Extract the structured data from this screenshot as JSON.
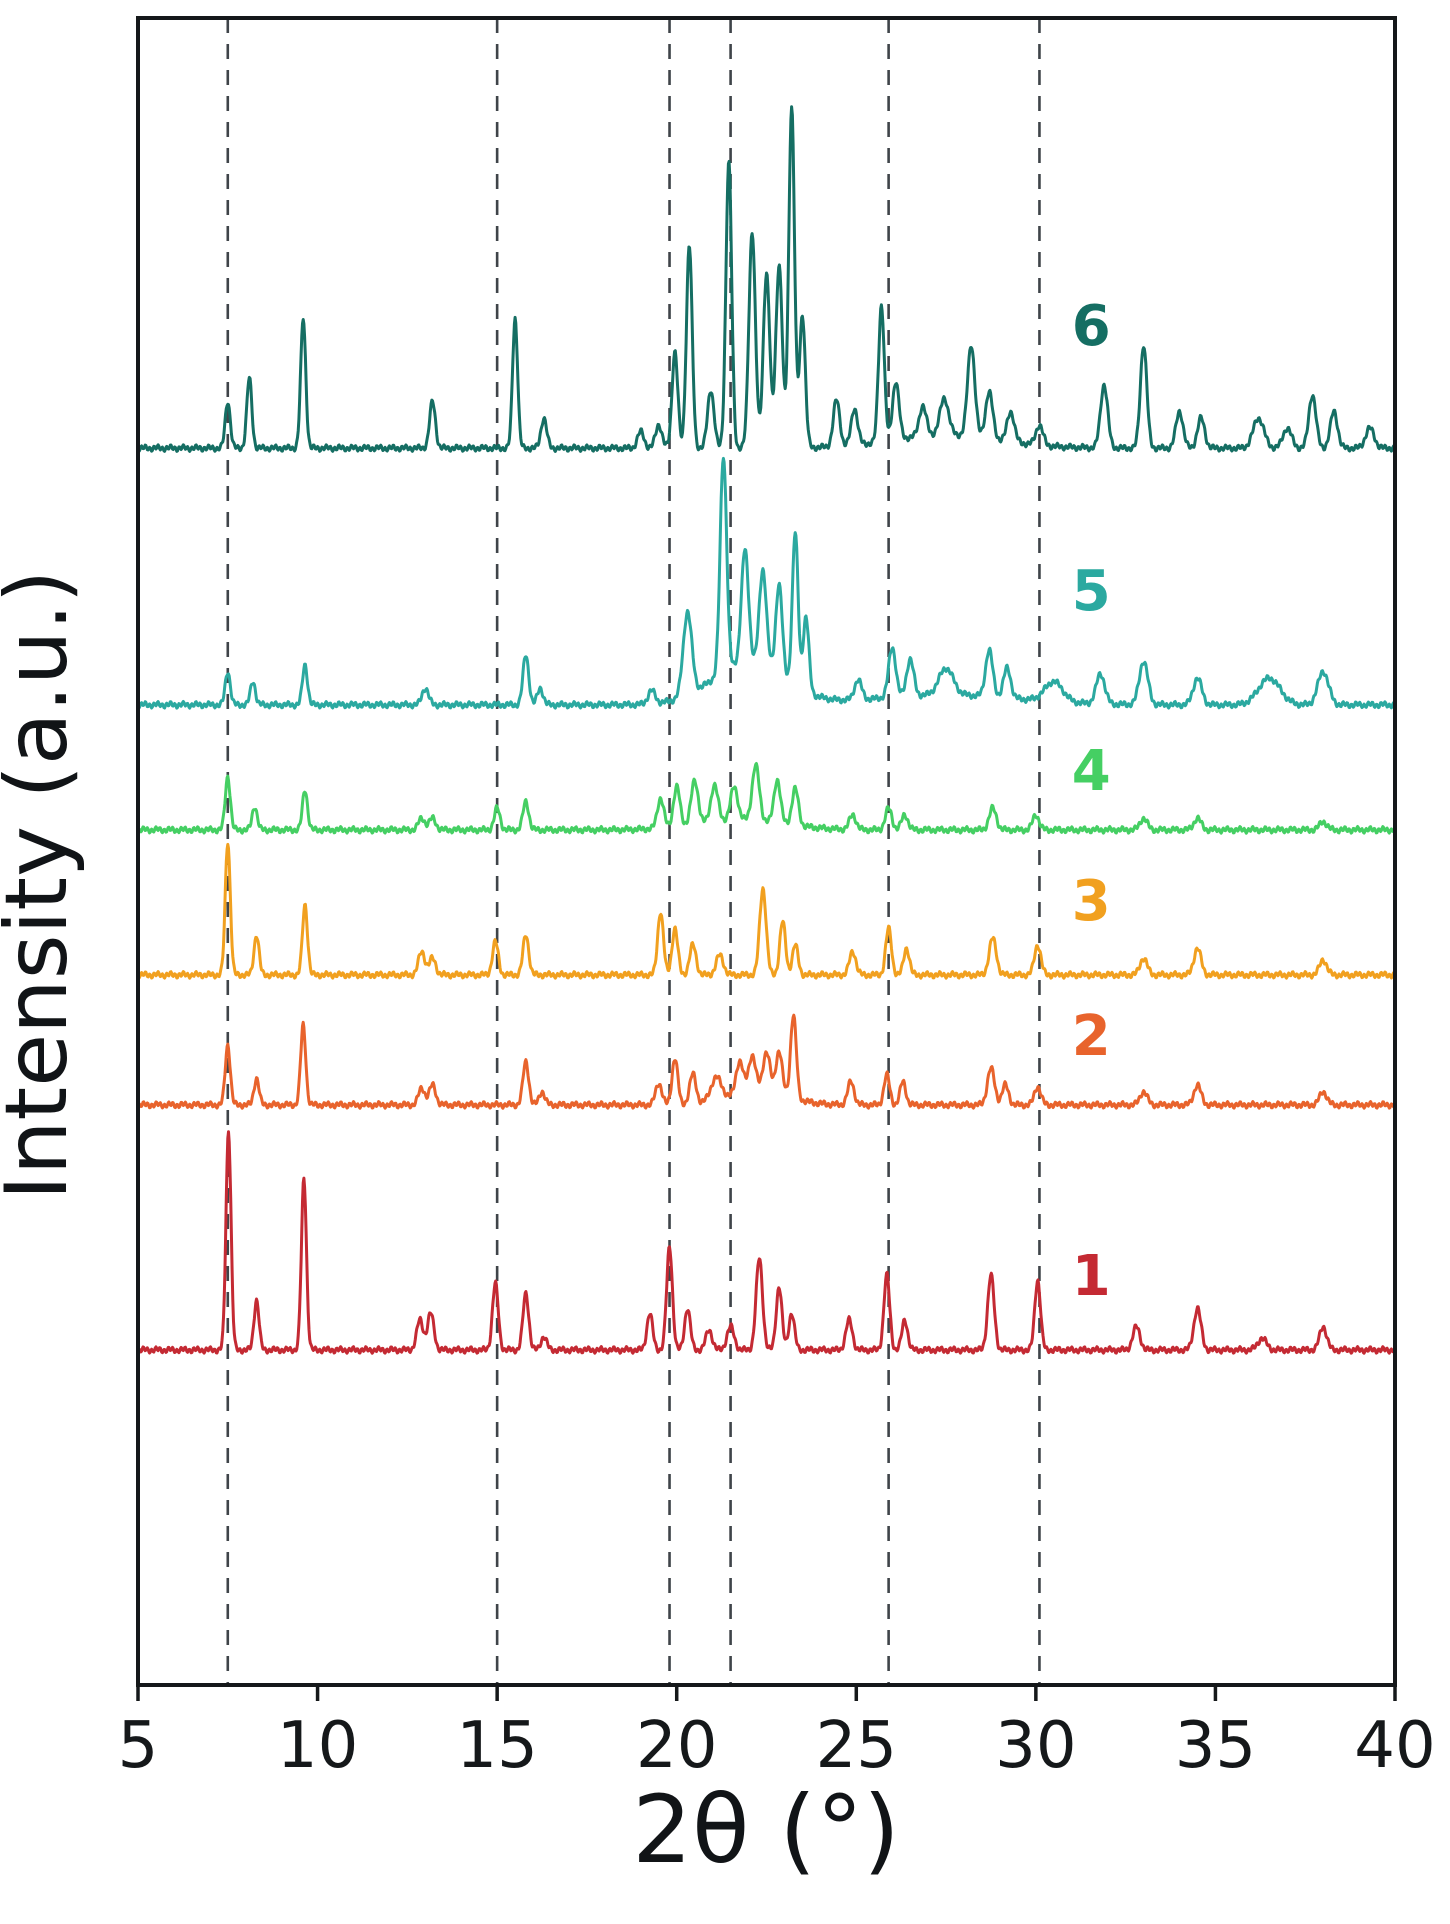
{
  "figure": {
    "background": "#ffffff",
    "frame_color": "#15181a"
  },
  "chart_data": {
    "type": "line",
    "title": "",
    "subtitle": "",
    "xlabel": "2θ (°)",
    "ylabel": "Intensity (a.u.)",
    "xlim": [
      5,
      40
    ],
    "x_ticks": [
      5,
      10,
      15,
      20,
      25,
      30,
      35,
      40
    ],
    "y_axis": "arbitrary units, no ticks (stacked offset XRD patterns)",
    "grid": "off",
    "legend": "inline numeric labels at right side of each trace",
    "dashed_guides_x": [
      7.5,
      15.0,
      19.8,
      21.5,
      25.9,
      30.1
    ],
    "dashed_guide_color": "#3f4449",
    "peaks_format": "[two_theta_deg, amplitude_fraction_of_plot_height, sigma_deg]",
    "series": [
      {
        "name": "pattern-1",
        "label": "1",
        "color": "#c42a33",
        "offset": 0.201,
        "label_x": 31.0,
        "label_y": 0.243,
        "peaks": [
          [
            7.52,
            0.132,
            0.07
          ],
          [
            8.3,
            0.03,
            0.07
          ],
          [
            9.62,
            0.103,
            0.07
          ],
          [
            12.85,
            0.018,
            0.09
          ],
          [
            13.15,
            0.022,
            0.09
          ],
          [
            14.95,
            0.04,
            0.08
          ],
          [
            15.8,
            0.034,
            0.08
          ],
          [
            16.3,
            0.008,
            0.08
          ],
          [
            19.25,
            0.022,
            0.08
          ],
          [
            19.8,
            0.062,
            0.08
          ],
          [
            20.3,
            0.025,
            0.08
          ],
          [
            20.9,
            0.012,
            0.09
          ],
          [
            21.5,
            0.014,
            0.1
          ],
          [
            22.3,
            0.055,
            0.09
          ],
          [
            22.85,
            0.038,
            0.08
          ],
          [
            23.2,
            0.022,
            0.08
          ],
          [
            24.8,
            0.018,
            0.09
          ],
          [
            25.85,
            0.045,
            0.08
          ],
          [
            26.35,
            0.018,
            0.08
          ],
          [
            28.75,
            0.045,
            0.09
          ],
          [
            30.05,
            0.042,
            0.08
          ],
          [
            32.8,
            0.014,
            0.1
          ],
          [
            34.5,
            0.025,
            0.1
          ],
          [
            36.3,
            0.007,
            0.12
          ],
          [
            38.0,
            0.014,
            0.1
          ]
        ]
      },
      {
        "name": "pattern-2",
        "label": "2",
        "color": "#e8632c",
        "offset": 0.348,
        "label_x": 31.0,
        "label_y": 0.387,
        "peaks": [
          [
            7.5,
            0.036,
            0.07
          ],
          [
            8.3,
            0.016,
            0.07
          ],
          [
            9.6,
            0.048,
            0.07
          ],
          [
            12.9,
            0.01,
            0.09
          ],
          [
            13.2,
            0.012,
            0.09
          ],
          [
            15.8,
            0.026,
            0.08
          ],
          [
            16.25,
            0.008,
            0.08
          ],
          [
            19.5,
            0.013,
            0.09
          ],
          [
            19.95,
            0.028,
            0.08
          ],
          [
            20.45,
            0.018,
            0.09
          ],
          [
            21.1,
            0.014,
            0.15
          ],
          [
            21.75,
            0.02,
            0.1
          ],
          [
            22.1,
            0.022,
            0.1
          ],
          [
            22.5,
            0.024,
            0.1
          ],
          [
            22.85,
            0.026,
            0.09
          ],
          [
            23.25,
            0.05,
            0.08
          ],
          [
            24.85,
            0.014,
            0.09
          ],
          [
            25.85,
            0.018,
            0.08
          ],
          [
            26.3,
            0.014,
            0.08
          ],
          [
            28.75,
            0.022,
            0.1
          ],
          [
            29.15,
            0.012,
            0.09
          ],
          [
            30.05,
            0.011,
            0.09
          ],
          [
            33.0,
            0.008,
            0.1
          ],
          [
            34.5,
            0.012,
            0.1
          ],
          [
            38.0,
            0.008,
            0.1
          ],
          [
            22.3,
            0.008,
            0.8
          ]
        ]
      },
      {
        "name": "pattern-3",
        "label": "3",
        "color": "#f1a01f",
        "offset": 0.426,
        "label_x": 31.0,
        "label_y": 0.468,
        "peaks": [
          [
            7.5,
            0.08,
            0.07
          ],
          [
            8.3,
            0.024,
            0.07
          ],
          [
            9.65,
            0.042,
            0.07
          ],
          [
            12.9,
            0.014,
            0.09
          ],
          [
            13.2,
            0.01,
            0.09
          ],
          [
            14.95,
            0.02,
            0.08
          ],
          [
            15.8,
            0.024,
            0.08
          ],
          [
            19.55,
            0.038,
            0.08
          ],
          [
            19.95,
            0.028,
            0.08
          ],
          [
            20.45,
            0.018,
            0.09
          ],
          [
            21.2,
            0.012,
            0.1
          ],
          [
            22.4,
            0.052,
            0.09
          ],
          [
            22.95,
            0.032,
            0.08
          ],
          [
            23.3,
            0.018,
            0.08
          ],
          [
            24.9,
            0.014,
            0.09
          ],
          [
            25.9,
            0.028,
            0.08
          ],
          [
            26.4,
            0.016,
            0.08
          ],
          [
            28.8,
            0.022,
            0.1
          ],
          [
            30.05,
            0.018,
            0.09
          ],
          [
            33.0,
            0.01,
            0.1
          ],
          [
            34.5,
            0.016,
            0.1
          ],
          [
            38.0,
            0.009,
            0.1
          ]
        ]
      },
      {
        "name": "pattern-4",
        "label": "4",
        "color": "#45cf63",
        "offset": 0.513,
        "label_x": 31.0,
        "label_y": 0.546,
        "peaks": [
          [
            7.5,
            0.032,
            0.07
          ],
          [
            8.25,
            0.014,
            0.07
          ],
          [
            9.65,
            0.024,
            0.07
          ],
          [
            12.9,
            0.007,
            0.09
          ],
          [
            13.2,
            0.007,
            0.09
          ],
          [
            15.0,
            0.013,
            0.08
          ],
          [
            15.8,
            0.017,
            0.08
          ],
          [
            19.55,
            0.018,
            0.09
          ],
          [
            20.0,
            0.024,
            0.09
          ],
          [
            20.5,
            0.026,
            0.1
          ],
          [
            21.05,
            0.022,
            0.1
          ],
          [
            21.6,
            0.02,
            0.1
          ],
          [
            22.2,
            0.033,
            0.1
          ],
          [
            22.8,
            0.026,
            0.09
          ],
          [
            23.3,
            0.022,
            0.09
          ],
          [
            24.9,
            0.009,
            0.09
          ],
          [
            25.9,
            0.013,
            0.09
          ],
          [
            26.35,
            0.009,
            0.09
          ],
          [
            28.8,
            0.013,
            0.1
          ],
          [
            30.0,
            0.009,
            0.09
          ],
          [
            33.0,
            0.007,
            0.1
          ],
          [
            34.5,
            0.007,
            0.1
          ],
          [
            38.0,
            0.005,
            0.1
          ],
          [
            21.8,
            0.006,
            1.2
          ]
        ]
      },
      {
        "name": "pattern-5",
        "label": "5",
        "color": "#2ba9a0",
        "offset": 0.588,
        "label_x": 31.0,
        "label_y": 0.654,
        "peaks": [
          [
            7.5,
            0.02,
            0.07
          ],
          [
            8.2,
            0.014,
            0.07
          ],
          [
            9.65,
            0.024,
            0.07
          ],
          [
            13.0,
            0.01,
            0.09
          ],
          [
            15.8,
            0.03,
            0.08
          ],
          [
            16.2,
            0.01,
            0.08
          ],
          [
            19.3,
            0.008,
            0.1
          ],
          [
            20.3,
            0.05,
            0.12
          ],
          [
            21.3,
            0.13,
            0.09
          ],
          [
            21.9,
            0.068,
            0.1
          ],
          [
            22.4,
            0.058,
            0.1
          ],
          [
            22.85,
            0.055,
            0.09
          ],
          [
            23.3,
            0.092,
            0.08
          ],
          [
            23.6,
            0.045,
            0.08
          ],
          [
            25.05,
            0.012,
            0.1
          ],
          [
            26.0,
            0.03,
            0.1
          ],
          [
            26.5,
            0.022,
            0.1
          ],
          [
            27.5,
            0.016,
            0.2
          ],
          [
            28.7,
            0.028,
            0.1
          ],
          [
            29.2,
            0.018,
            0.1
          ],
          [
            30.5,
            0.012,
            0.25
          ],
          [
            31.8,
            0.018,
            0.12
          ],
          [
            33.0,
            0.026,
            0.12
          ],
          [
            34.5,
            0.016,
            0.12
          ],
          [
            36.5,
            0.016,
            0.3
          ],
          [
            38.0,
            0.02,
            0.15
          ],
          [
            22.0,
            0.025,
            1.0
          ],
          [
            27.5,
            0.006,
            2.0
          ]
        ]
      },
      {
        "name": "pattern-6",
        "label": "6",
        "color": "#156e63",
        "offset": 0.742,
        "label_x": 31.0,
        "label_y": 0.813,
        "peaks": [
          [
            7.5,
            0.028,
            0.07
          ],
          [
            8.1,
            0.042,
            0.07
          ],
          [
            9.6,
            0.078,
            0.07
          ],
          [
            13.2,
            0.028,
            0.08
          ],
          [
            15.5,
            0.078,
            0.07
          ],
          [
            16.3,
            0.018,
            0.08
          ],
          [
            19.0,
            0.01,
            0.09
          ],
          [
            19.5,
            0.014,
            0.09
          ],
          [
            19.95,
            0.058,
            0.08
          ],
          [
            20.35,
            0.122,
            0.08
          ],
          [
            20.95,
            0.035,
            0.09
          ],
          [
            21.45,
            0.172,
            0.08
          ],
          [
            22.1,
            0.13,
            0.09
          ],
          [
            22.5,
            0.105,
            0.09
          ],
          [
            22.85,
            0.11,
            0.09
          ],
          [
            23.2,
            0.205,
            0.08
          ],
          [
            23.5,
            0.08,
            0.08
          ],
          [
            24.45,
            0.028,
            0.09
          ],
          [
            24.95,
            0.022,
            0.09
          ],
          [
            25.7,
            0.082,
            0.08
          ],
          [
            26.1,
            0.035,
            0.09
          ],
          [
            26.85,
            0.018,
            0.1
          ],
          [
            27.45,
            0.022,
            0.12
          ],
          [
            28.2,
            0.055,
            0.1
          ],
          [
            28.7,
            0.028,
            0.1
          ],
          [
            29.3,
            0.018,
            0.1
          ],
          [
            30.1,
            0.012,
            0.1
          ],
          [
            31.9,
            0.038,
            0.1
          ],
          [
            33.0,
            0.062,
            0.09
          ],
          [
            34.0,
            0.022,
            0.1
          ],
          [
            34.6,
            0.018,
            0.1
          ],
          [
            36.2,
            0.018,
            0.15
          ],
          [
            37.0,
            0.012,
            0.12
          ],
          [
            37.7,
            0.032,
            0.1
          ],
          [
            38.3,
            0.022,
            0.1
          ],
          [
            39.3,
            0.012,
            0.12
          ],
          [
            27.5,
            0.008,
            1.5
          ]
        ]
      }
    ]
  }
}
